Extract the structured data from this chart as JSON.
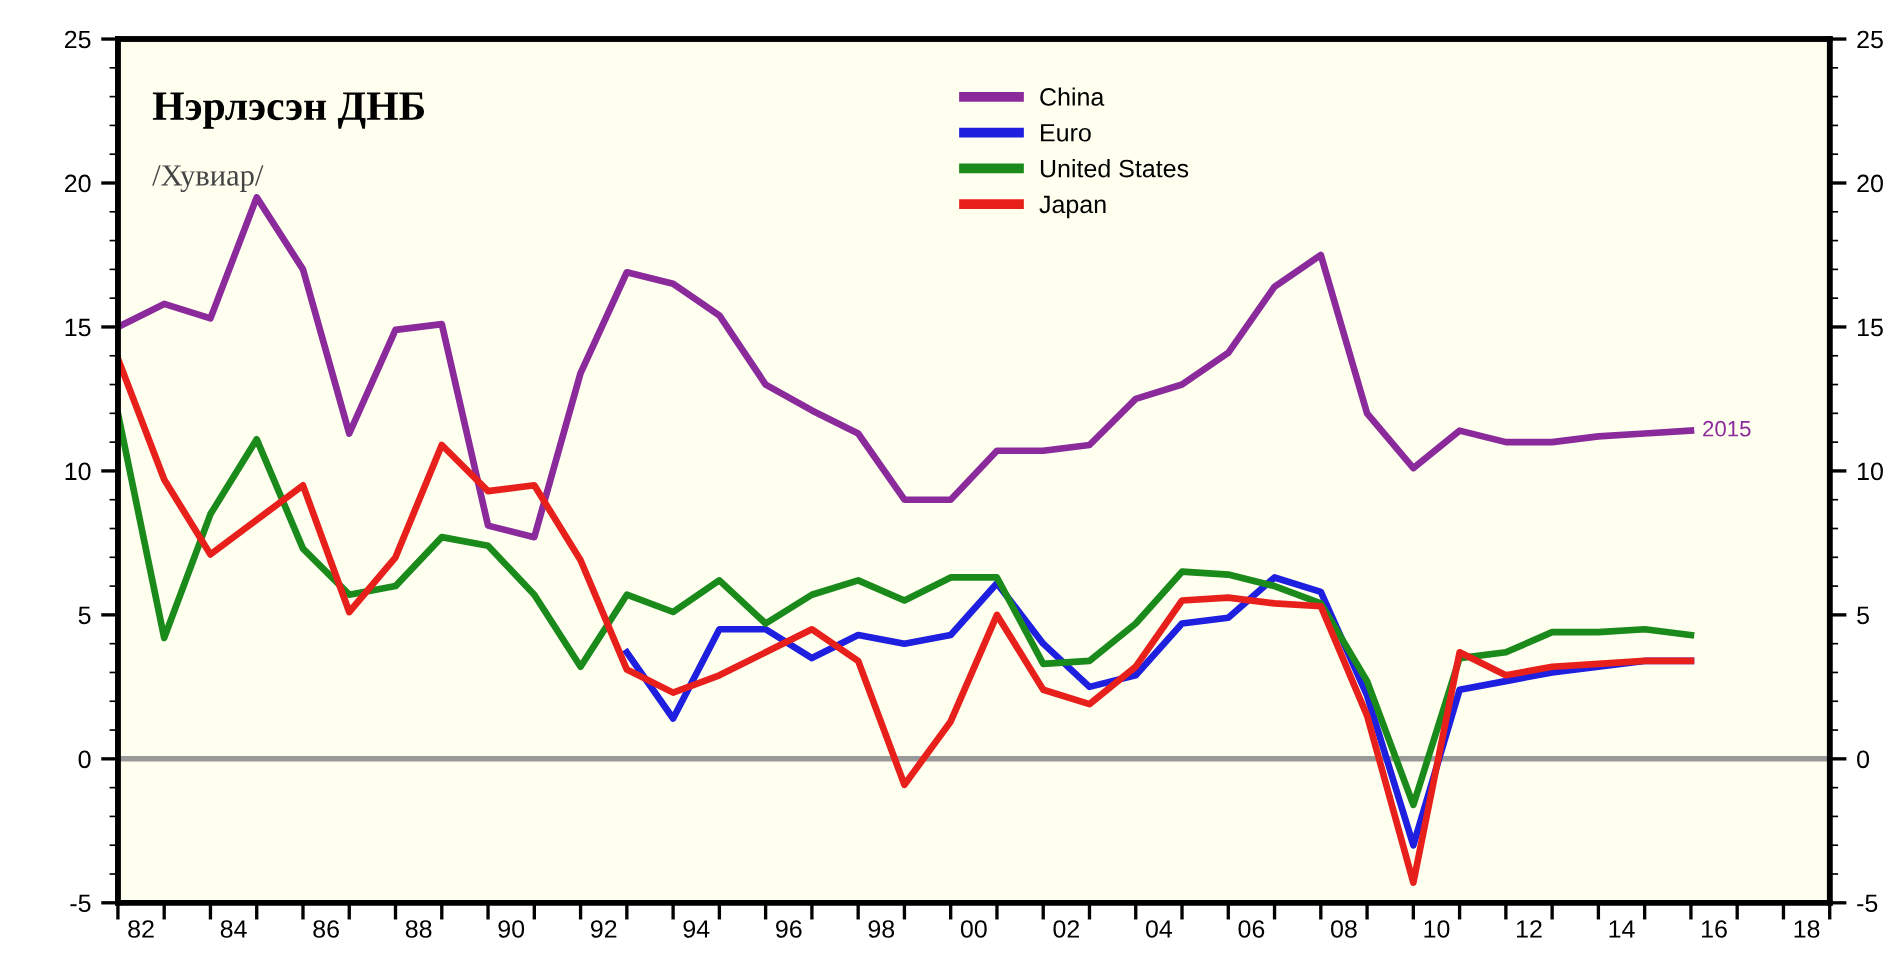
{
  "chart_data": {
    "type": "line",
    "title": "Нэрлэсэн ДНБ",
    "subtitle": "/Хувиар/",
    "x": [
      1981.5,
      1982.5,
      1983.5,
      1984.5,
      1985.5,
      1986.5,
      1987.5,
      1988.5,
      1989.5,
      1990.5,
      1991.5,
      1992.5,
      1993.5,
      1994.5,
      1995.5,
      1996.5,
      1997.5,
      1998.5,
      1999.5,
      2000.5,
      2001.5,
      2002.5,
      2003.5,
      2004.5,
      2005.5,
      2006.5,
      2007.5,
      2008.5,
      2009.5,
      2010.5,
      2011.5,
      2012.5,
      2013.5,
      2014.5,
      2015.5
    ],
    "series": [
      {
        "name": "China",
        "color": "#8b2a9b",
        "values": [
          15.0,
          15.8,
          15.3,
          19.5,
          17.0,
          11.3,
          14.9,
          15.1,
          8.1,
          7.7,
          13.4,
          16.9,
          16.5,
          15.4,
          13.0,
          12.1,
          11.3,
          9.0,
          9.0,
          10.7,
          10.7,
          10.9,
          12.5,
          13.0,
          14.1,
          16.4,
          17.5,
          12.0,
          10.1,
          11.4,
          11.0,
          11.0,
          11.2,
          11.3,
          11.4
        ]
      },
      {
        "name": "Euro",
        "color": "#1f1fe0",
        "x": [
          1992.5,
          1993.5,
          1994.5,
          1995.5,
          1996.5,
          1997.5,
          1998.5,
          1999.5,
          2000.5,
          2001.5,
          2002.5,
          2003.5,
          2004.5,
          2005.5,
          2006.5,
          2007.5,
          2008.5,
          2009.5,
          2010.5,
          2011.5,
          2012.5,
          2013.5,
          2014.5,
          2015.5
        ],
        "values": [
          3.7,
          1.4,
          4.5,
          4.5,
          3.5,
          4.3,
          4.0,
          4.3,
          6.1,
          4.0,
          2.5,
          2.9,
          4.7,
          4.9,
          6.3,
          5.8,
          2.2,
          -3.0,
          2.4,
          2.7,
          3.0,
          3.2,
          3.4,
          3.4
        ]
      },
      {
        "name": "United States",
        "color": "#1a8a1a",
        "values": [
          12.0,
          4.2,
          8.5,
          11.1,
          7.3,
          5.7,
          6.0,
          7.7,
          7.4,
          5.7,
          3.2,
          5.7,
          5.1,
          6.2,
          4.7,
          5.7,
          6.2,
          5.5,
          6.3,
          6.3,
          3.3,
          3.4,
          4.7,
          6.5,
          6.4,
          6.0,
          5.4,
          2.7,
          -1.6,
          3.5,
          3.7,
          4.4,
          4.4,
          4.5,
          4.3
        ]
      },
      {
        "name": "Japan",
        "color": "#e8201c",
        "values": [
          13.9,
          9.7,
          7.1,
          8.3,
          9.5,
          5.1,
          7.0,
          10.9,
          9.3,
          9.5,
          6.9,
          3.1,
          2.3,
          2.9,
          3.7,
          4.5,
          3.4,
          -0.9,
          1.3,
          5.0,
          2.4,
          1.9,
          3.2,
          5.5,
          5.6,
          5.4,
          5.3,
          1.5,
          -4.3,
          3.7,
          2.9,
          3.2,
          3.3,
          3.4,
          3.4
        ]
      }
    ],
    "annotations": [
      {
        "text": "2015",
        "x": 2015.5,
        "y": 11.4
      }
    ],
    "ref_lines": [
      {
        "axis": "y",
        "value": 0,
        "color": "#999999"
      }
    ],
    "xlim": [
      1981.5,
      2018.5
    ],
    "xticks": [
      {
        "value": 1981.5,
        "label": null
      },
      {
        "value": 1982.5,
        "label": null
      },
      {
        "value": 1983.5,
        "label": null
      },
      {
        "value": 1984.5,
        "label": null
      },
      {
        "value": 1985.5,
        "label": null
      },
      {
        "value": 1986.5,
        "label": null
      },
      {
        "value": 1987.5,
        "label": null
      },
      {
        "value": 1988.5,
        "label": null
      },
      {
        "value": 1989.5,
        "label": null
      },
      {
        "value": 1990.5,
        "label": null
      },
      {
        "value": 1991.5,
        "label": null
      },
      {
        "value": 1992.5,
        "label": null
      },
      {
        "value": 1993.5,
        "label": null
      },
      {
        "value": 1994.5,
        "label": null
      },
      {
        "value": 1995.5,
        "label": null
      },
      {
        "value": 1996.5,
        "label": null
      },
      {
        "value": 1997.5,
        "label": null
      },
      {
        "value": 1998.5,
        "label": null
      },
      {
        "value": 1999.5,
        "label": null
      },
      {
        "value": 2000.5,
        "label": null
      },
      {
        "value": 2001.5,
        "label": null
      },
      {
        "value": 2002.5,
        "label": null
      },
      {
        "value": 2003.5,
        "label": null
      },
      {
        "value": 2004.5,
        "label": null
      },
      {
        "value": 2005.5,
        "label": null
      },
      {
        "value": 2006.5,
        "label": null
      },
      {
        "value": 2007.5,
        "label": null
      },
      {
        "value": 2008.5,
        "label": null
      },
      {
        "value": 2009.5,
        "label": null
      },
      {
        "value": 2010.5,
        "label": null
      },
      {
        "value": 2011.5,
        "label": null
      },
      {
        "value": 2012.5,
        "label": null
      },
      {
        "value": 2013.5,
        "label": null
      },
      {
        "value": 2014.5,
        "label": null
      },
      {
        "value": 2015.5,
        "label": null
      },
      {
        "value": 2016.5,
        "label": null
      },
      {
        "value": 2017.5,
        "label": null
      },
      {
        "value": 2018.5,
        "label": null
      },
      {
        "value": 1982,
        "label": "82"
      },
      {
        "value": 1984,
        "label": "84"
      },
      {
        "value": 1986,
        "label": "86"
      },
      {
        "value": 1988,
        "label": "88"
      },
      {
        "value": 1990,
        "label": "90"
      },
      {
        "value": 1992,
        "label": "92"
      },
      {
        "value": 1994,
        "label": "94"
      },
      {
        "value": 1996,
        "label": "96"
      },
      {
        "value": 1998,
        "label": "98"
      },
      {
        "value": 2000,
        "label": "00"
      },
      {
        "value": 2002,
        "label": "02"
      },
      {
        "value": 2004,
        "label": "04"
      },
      {
        "value": 2006,
        "label": "06"
      },
      {
        "value": 2008,
        "label": "08"
      },
      {
        "value": 2010,
        "label": "10"
      },
      {
        "value": 2012,
        "label": "12"
      },
      {
        "value": 2014,
        "label": "14"
      },
      {
        "value": 2016,
        "label": "16"
      },
      {
        "value": 2018,
        "label": "18"
      }
    ],
    "ylim": [
      -5,
      25
    ],
    "yticks": [
      -5,
      0,
      5,
      10,
      15,
      20,
      25,
      {
        "value": -4,
        "label": null
      },
      {
        "value": -3,
        "label": null
      },
      {
        "value": -2,
        "label": null
      },
      {
        "value": -1,
        "label": null
      },
      {
        "value": 1,
        "label": null
      },
      {
        "value": 2,
        "label": null
      },
      {
        "value": 3,
        "label": null
      },
      {
        "value": 4,
        "label": null
      },
      {
        "value": 6,
        "label": null
      },
      {
        "value": 7,
        "label": null
      },
      {
        "value": 8,
        "label": null
      },
      {
        "value": 9,
        "label": null
      },
      {
        "value": 11,
        "label": null
      },
      {
        "value": 12,
        "label": null
      },
      {
        "value": 13,
        "label": null
      },
      {
        "value": 14,
        "label": null
      },
      {
        "value": 16,
        "label": null
      },
      {
        "value": 17,
        "label": null
      },
      {
        "value": 18,
        "label": null
      },
      {
        "value": 19,
        "label": null
      },
      {
        "value": 21,
        "label": null
      },
      {
        "value": 22,
        "label": null
      },
      {
        "value": 23,
        "label": null
      },
      {
        "value": 24,
        "label": null
      }
    ],
    "y2lim": [
      -5,
      25
    ],
    "y2ticks": [
      -5,
      0,
      5,
      10,
      15,
      20,
      25,
      {
        "value": -4,
        "label": null
      },
      {
        "value": -3,
        "label": null
      },
      {
        "value": -2,
        "label": null
      },
      {
        "value": -1,
        "label": null
      },
      {
        "value": 1,
        "label": null
      },
      {
        "value": 2,
        "label": null
      },
      {
        "value": 3,
        "label": null
      },
      {
        "value": 4,
        "label": null
      },
      {
        "value": 6,
        "label": null
      },
      {
        "value": 7,
        "label": null
      },
      {
        "value": 8,
        "label": null
      },
      {
        "value": 9,
        "label": null
      },
      {
        "value": 11,
        "label": null
      },
      {
        "value": 12,
        "label": null
      },
      {
        "value": 13,
        "label": null
      },
      {
        "value": 14,
        "label": null
      },
      {
        "value": 16,
        "label": null
      },
      {
        "value": 17,
        "label": null
      },
      {
        "value": 18,
        "label": null
      },
      {
        "value": 19,
        "label": null
      },
      {
        "value": 21,
        "label": null
      },
      {
        "value": 22,
        "label": null
      },
      {
        "value": 23,
        "label": null
      },
      {
        "value": 24,
        "label": null
      }
    ],
    "legend": "top",
    "grid": false,
    "marker": "none",
    "line_style": "solid"
  }
}
